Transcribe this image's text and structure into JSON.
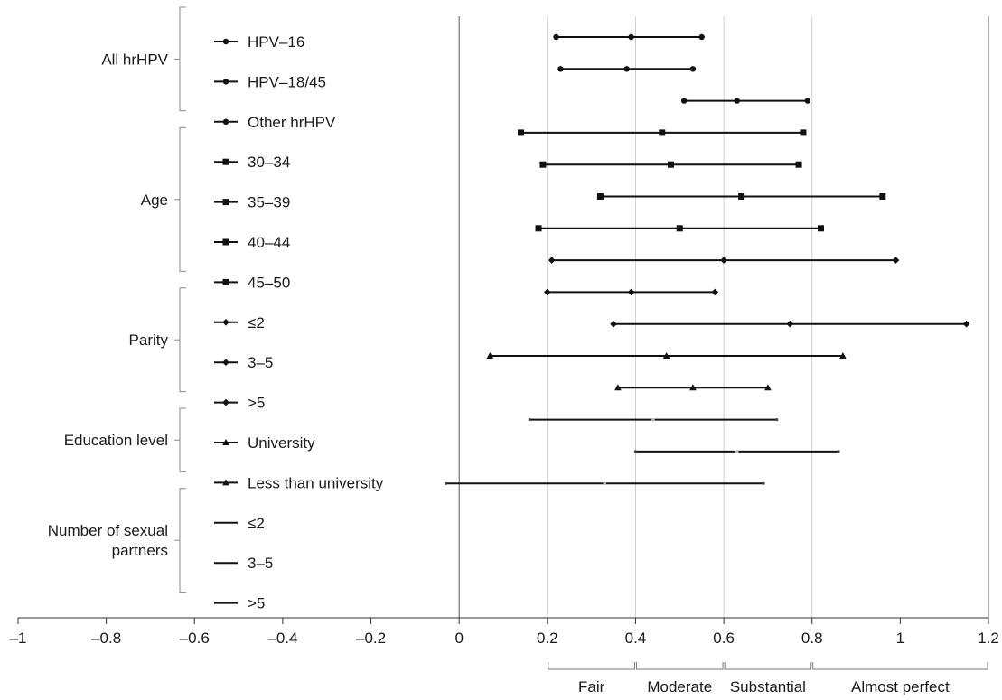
{
  "chart_data": {
    "type": "forest",
    "xlim": [
      -1,
      1.2
    ],
    "xticks": [
      -1,
      -0.8,
      -0.6,
      -0.4,
      -0.2,
      0,
      0.2,
      0.4,
      0.6,
      0.8,
      1,
      1.2
    ],
    "xtick_labels": [
      "–1",
      "–0.8",
      "–0.6",
      "–0.4",
      "–0.2",
      "0",
      "0.2",
      "0.4",
      "0.6",
      "0.8",
      "1",
      "1.2"
    ],
    "vertical_gridlines": [
      0.2,
      0.4,
      0.6,
      0.8,
      1.2
    ],
    "agreement_bands": [
      {
        "label": "Fair",
        "from": 0.2,
        "to": 0.4
      },
      {
        "label": "Moderate",
        "from": 0.4,
        "to": 0.6
      },
      {
        "label": "Substantial",
        "from": 0.6,
        "to": 0.8
      },
      {
        "label": "Almost perfect",
        "from": 0.8,
        "to": 1.2
      }
    ],
    "groups": [
      {
        "name": "All hrHPV",
        "rows": [
          0,
          1,
          2
        ]
      },
      {
        "name": "Age",
        "rows": [
          3,
          4,
          5,
          6
        ]
      },
      {
        "name": "Parity",
        "rows": [
          7,
          8,
          9
        ]
      },
      {
        "name": "Education level",
        "rows": [
          10,
          11
        ]
      },
      {
        "name": "Number of sexual partners",
        "name_lines": [
          "Number of sexual",
          "partners"
        ],
        "rows": [
          12,
          13,
          14
        ]
      }
    ],
    "rows": [
      {
        "label": "HPV–16",
        "marker": "circle",
        "ci": [
          0.22,
          0.55
        ],
        "estimate": 0.39
      },
      {
        "label": "HPV–18/45",
        "marker": "circle",
        "ci": [
          0.23,
          0.53
        ],
        "estimate": 0.38
      },
      {
        "label": "Other hrHPV",
        "marker": "circle",
        "ci": [
          0.51,
          0.79
        ],
        "estimate": 0.63
      },
      {
        "label": "30–34",
        "marker": "square",
        "ci": [
          0.14,
          0.78
        ],
        "estimate": 0.46
      },
      {
        "label": "35–39",
        "marker": "square",
        "ci": [
          0.19,
          0.77
        ],
        "estimate": 0.48
      },
      {
        "label": "40–44",
        "marker": "square",
        "ci": [
          0.32,
          0.96
        ],
        "estimate": 0.64
      },
      {
        "label": "45–50",
        "marker": "square",
        "ci": [
          0.18,
          0.82
        ],
        "estimate": 0.5
      },
      {
        "label": "≤2",
        "marker": "diamond",
        "ci": [
          0.21,
          0.99
        ],
        "estimate": 0.6
      },
      {
        "label": "3–5",
        "marker": "diamond",
        "ci": [
          0.2,
          0.58
        ],
        "estimate": 0.39
      },
      {
        "label": ">5",
        "marker": "diamond",
        "ci": [
          0.35,
          1.15
        ],
        "estimate": 0.75
      },
      {
        "label": "University",
        "marker": "triangle",
        "ci": [
          0.07,
          0.87
        ],
        "estimate": 0.47
      },
      {
        "label": "Less than university",
        "marker": "triangle",
        "ci": [
          0.36,
          0.7
        ],
        "estimate": 0.53
      },
      {
        "label": "≤2",
        "marker": "dash",
        "ci": [
          0.16,
          0.72
        ],
        "estimate": 0.44
      },
      {
        "label": "3–5",
        "marker": "dash",
        "ci": [
          0.4,
          0.86
        ],
        "estimate": 0.63
      },
      {
        "label": ">5",
        "marker": "dash",
        "ci": [
          -0.03,
          0.69
        ],
        "estimate": 0.33
      }
    ]
  }
}
